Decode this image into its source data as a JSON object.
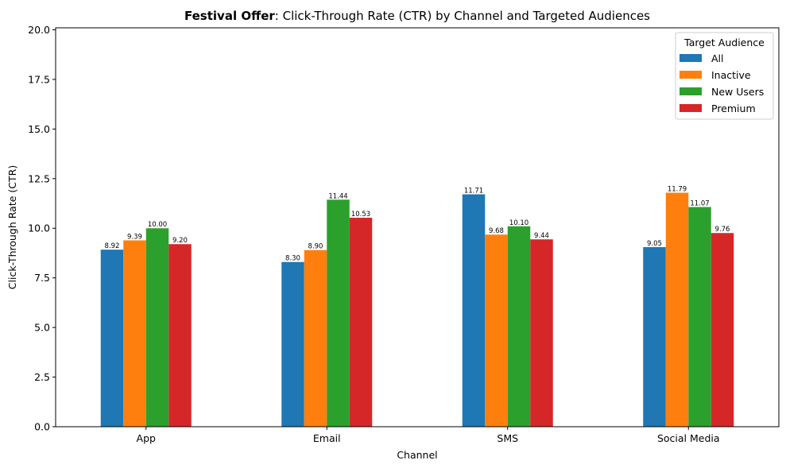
{
  "chart_data": {
    "type": "bar",
    "title_bold": "Festival Offer",
    "title_rest": ": Click-Through Rate (CTR) by Channel and Targeted Audiences",
    "xlabel": "Channel",
    "ylabel": "Click-Through Rate (CTR)",
    "ylim": [
      0,
      20.1
    ],
    "yticks": [
      "0.0",
      "2.5",
      "5.0",
      "7.5",
      "10.0",
      "12.5",
      "15.0",
      "17.5",
      "20.0"
    ],
    "ytick_values": [
      0,
      2.5,
      5,
      7.5,
      10,
      12.5,
      15,
      17.5,
      20
    ],
    "categories": [
      "App",
      "Email",
      "SMS",
      "Social Media"
    ],
    "legend_title": "Target Audience",
    "legend_position": "top-right",
    "grid": false,
    "series": [
      {
        "name": "All",
        "color": "#1f77b4",
        "values": [
          8.92,
          8.3,
          11.71,
          9.05
        ],
        "labels": [
          "8.92",
          "8.30",
          "11.71",
          "9.05"
        ]
      },
      {
        "name": "Inactive",
        "color": "#ff7f0e",
        "values": [
          9.39,
          8.9,
          9.68,
          11.79
        ],
        "labels": [
          "9.39",
          "8.90",
          "9.68",
          "11.79"
        ]
      },
      {
        "name": "New Users",
        "color": "#2ca02c",
        "values": [
          10.0,
          11.44,
          10.1,
          11.07
        ],
        "labels": [
          "10.00",
          "11.44",
          "10.10",
          "11.07"
        ]
      },
      {
        "name": "Premium",
        "color": "#d62728",
        "values": [
          9.2,
          10.53,
          9.44,
          9.76
        ],
        "labels": [
          "9.20",
          "10.53",
          "9.44",
          "9.76"
        ]
      }
    ]
  }
}
